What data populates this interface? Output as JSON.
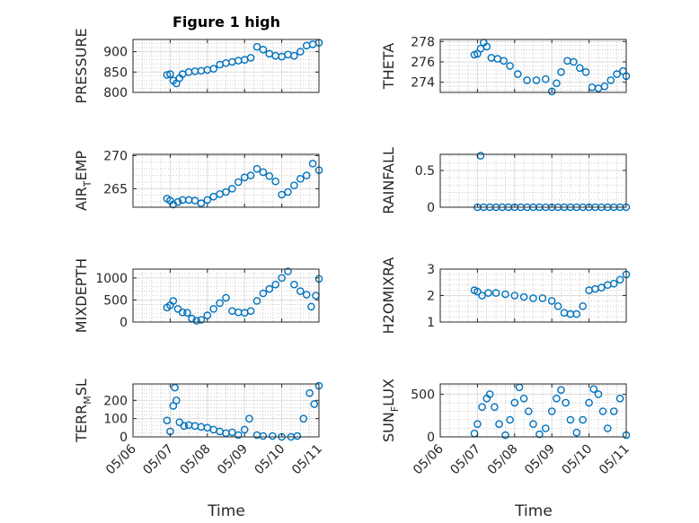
{
  "figure": {
    "title": "Figure 1 high",
    "marker_color": "#0072bd",
    "x_axis_label": "Time",
    "date_ticks": [
      "05/06",
      "05/07",
      "05/08",
      "05/09",
      "05/10",
      "05/11"
    ]
  },
  "chart_data": [
    {
      "type": "scatter",
      "ylabel": "PRESSURE",
      "xlim": [
        "2020-05-06",
        "2020-05-11"
      ],
      "ylim": [
        800,
        930
      ],
      "yticks": [
        800,
        850,
        900
      ],
      "grid": true,
      "x": [
        "2020-05-06T22:00",
        "2020-05-07T00:00",
        "2020-05-07T02:00",
        "2020-05-07T04:00",
        "2020-05-07T06:00",
        "2020-05-07T08:00",
        "2020-05-07T12:00",
        "2020-05-07T16:00",
        "2020-05-07T20:00",
        "2020-05-08T00:00",
        "2020-05-08T04:00",
        "2020-05-08T08:00",
        "2020-05-08T12:00",
        "2020-05-08T16:00",
        "2020-05-08T20:00",
        "2020-05-09T00:00",
        "2020-05-09T04:00",
        "2020-05-09T08:00",
        "2020-05-09T12:00",
        "2020-05-09T16:00",
        "2020-05-09T20:00",
        "2020-05-10T00:00",
        "2020-05-10T04:00",
        "2020-05-10T08:00",
        "2020-05-10T12:00",
        "2020-05-10T16:00",
        "2020-05-10T20:00",
        "2020-05-11T00:00"
      ],
      "y": [
        843,
        845,
        829,
        822,
        835,
        845,
        850,
        852,
        853,
        855,
        858,
        868,
        872,
        875,
        878,
        880,
        885,
        912,
        905,
        895,
        890,
        888,
        893,
        890,
        900,
        915,
        918,
        922
      ]
    },
    {
      "type": "scatter",
      "ylabel": "THETA",
      "xlim": [
        "2020-05-06",
        "2020-05-11"
      ],
      "ylim": [
        273,
        278.2
      ],
      "yticks": [
        274,
        276,
        278
      ],
      "grid": true,
      "x": [
        "2020-05-06T22:00",
        "2020-05-07T00:00",
        "2020-05-07T02:00",
        "2020-05-07T04:00",
        "2020-05-07T06:00",
        "2020-05-07T09:00",
        "2020-05-07T13:00",
        "2020-05-07T17:00",
        "2020-05-07T21:00",
        "2020-05-08T02:00",
        "2020-05-08T08:00",
        "2020-05-08T14:00",
        "2020-05-08T20:00",
        "2020-05-09T00:00",
        "2020-05-09T03:00",
        "2020-05-09T06:00",
        "2020-05-09T10:00",
        "2020-05-09T14:00",
        "2020-05-09T18:00",
        "2020-05-09T22:00",
        "2020-05-10T02:00",
        "2020-05-10T06:00",
        "2020-05-10T10:00",
        "2020-05-10T14:00",
        "2020-05-10T18:00",
        "2020-05-10T22:00",
        "2020-05-11T00:00"
      ],
      "y": [
        276.7,
        276.8,
        277.3,
        277.9,
        277.5,
        276.4,
        276.3,
        276.1,
        275.6,
        274.8,
        274.2,
        274.2,
        274.3,
        273.1,
        273.9,
        275.0,
        276.1,
        276.0,
        275.4,
        275.0,
        273.5,
        273.4,
        273.6,
        274.2,
        274.8,
        275.1,
        274.6
      ]
    },
    {
      "type": "scatter",
      "ylabel": "AIR_TEMP",
      "xlim": [
        "2020-05-06",
        "2020-05-11"
      ],
      "ylim": [
        262.2,
        270.2
      ],
      "yticks": [
        265,
        270
      ],
      "grid": true,
      "x": [
        "2020-05-06T22:00",
        "2020-05-07T00:00",
        "2020-05-07T02:00",
        "2020-05-07T05:00",
        "2020-05-07T08:00",
        "2020-05-07T12:00",
        "2020-05-07T16:00",
        "2020-05-07T20:00",
        "2020-05-08T00:00",
        "2020-05-08T04:00",
        "2020-05-08T08:00",
        "2020-05-08T12:00",
        "2020-05-08T16:00",
        "2020-05-08T20:00",
        "2020-05-09T00:00",
        "2020-05-09T04:00",
        "2020-05-09T08:00",
        "2020-05-09T12:00",
        "2020-05-09T16:00",
        "2020-05-09T20:00",
        "2020-05-10T00:00",
        "2020-05-10T04:00",
        "2020-05-10T08:00",
        "2020-05-10T12:00",
        "2020-05-10T16:00",
        "2020-05-10T20:00",
        "2020-05-11T00:00"
      ],
      "y": [
        263.5,
        263.2,
        262.6,
        263.0,
        263.3,
        263.3,
        263.2,
        262.8,
        263.3,
        263.8,
        264.2,
        264.5,
        265.0,
        266.0,
        266.7,
        267.0,
        268.0,
        267.5,
        266.9,
        266.1,
        264.1,
        264.5,
        265.5,
        266.5,
        267.0,
        268.8,
        267.8
      ]
    },
    {
      "type": "scatter",
      "ylabel": "RAINFALL",
      "xlim": [
        "2020-05-06",
        "2020-05-11"
      ],
      "ylim": [
        0,
        0.72
      ],
      "yticks": [
        0,
        0.5
      ],
      "grid": true,
      "x": [
        "2020-05-07T00:00",
        "2020-05-07T04:00",
        "2020-05-07T08:00",
        "2020-05-07T12:00",
        "2020-05-07T16:00",
        "2020-05-07T20:00",
        "2020-05-08T00:00",
        "2020-05-08T04:00",
        "2020-05-08T08:00",
        "2020-05-08T12:00",
        "2020-05-08T16:00",
        "2020-05-08T20:00",
        "2020-05-09T00:00",
        "2020-05-09T04:00",
        "2020-05-09T08:00",
        "2020-05-09T12:00",
        "2020-05-09T16:00",
        "2020-05-09T20:00",
        "2020-05-10T00:00",
        "2020-05-10T04:00",
        "2020-05-10T08:00",
        "2020-05-10T12:00",
        "2020-05-10T16:00",
        "2020-05-10T20:00",
        "2020-05-11T00:00",
        "2020-05-07T02:00"
      ],
      "y": [
        0,
        0,
        0,
        0,
        0,
        0,
        0,
        0,
        0,
        0,
        0,
        0,
        0,
        0,
        0,
        0,
        0,
        0,
        0,
        0,
        0,
        0,
        0,
        0,
        0,
        0.7
      ]
    },
    {
      "type": "scatter",
      "ylabel": "MIXDEPTH",
      "xlim": [
        "2020-05-06",
        "2020-05-11"
      ],
      "ylim": [
        0,
        1200
      ],
      "yticks": [
        0,
        500,
        1000
      ],
      "grid": true,
      "x": [
        "2020-05-06T22:00",
        "2020-05-07T00:00",
        "2020-05-07T02:00",
        "2020-05-07T05:00",
        "2020-05-07T08:00",
        "2020-05-07T11:00",
        "2020-05-07T14:00",
        "2020-05-07T17:00",
        "2020-05-07T20:00",
        "2020-05-08T00:00",
        "2020-05-08T04:00",
        "2020-05-08T08:00",
        "2020-05-08T12:00",
        "2020-05-08T16:00",
        "2020-05-08T20:00",
        "2020-05-09T00:00",
        "2020-05-09T04:00",
        "2020-05-09T08:00",
        "2020-05-09T12:00",
        "2020-05-09T16:00",
        "2020-05-09T20:00",
        "2020-05-10T00:00",
        "2020-05-10T04:00",
        "2020-05-10T08:00",
        "2020-05-10T12:00",
        "2020-05-10T16:00",
        "2020-05-10T19:00",
        "2020-05-10T22:00",
        "2020-05-11T00:00"
      ],
      "y": [
        330,
        380,
        480,
        300,
        220,
        210,
        80,
        30,
        50,
        150,
        300,
        430,
        550,
        250,
        220,
        210,
        250,
        480,
        650,
        750,
        850,
        1000,
        1150,
        850,
        700,
        620,
        350,
        600,
        980
      ]
    },
    {
      "type": "scatter",
      "ylabel": "H2OMIXRA",
      "xlim": [
        "2020-05-06",
        "2020-05-11"
      ],
      "ylim": [
        1,
        3
      ],
      "yticks": [
        1,
        2,
        3
      ],
      "grid": true,
      "x": [
        "2020-05-06T22:00",
        "2020-05-07T00:00",
        "2020-05-07T03:00",
        "2020-05-07T07:00",
        "2020-05-07T12:00",
        "2020-05-07T18:00",
        "2020-05-08T00:00",
        "2020-05-08T06:00",
        "2020-05-08T12:00",
        "2020-05-08T18:00",
        "2020-05-09T00:00",
        "2020-05-09T04:00",
        "2020-05-09T08:00",
        "2020-05-09T12:00",
        "2020-05-09T16:00",
        "2020-05-09T20:00",
        "2020-05-10T00:00",
        "2020-05-10T04:00",
        "2020-05-10T08:00",
        "2020-05-10T12:00",
        "2020-05-10T16:00",
        "2020-05-10T20:00",
        "2020-05-11T00:00"
      ],
      "y": [
        2.2,
        2.15,
        2.0,
        2.1,
        2.1,
        2.05,
        2.0,
        1.95,
        1.9,
        1.9,
        1.8,
        1.6,
        1.35,
        1.3,
        1.3,
        1.6,
        2.2,
        2.25,
        2.3,
        2.4,
        2.45,
        2.6,
        2.8
      ]
    },
    {
      "type": "scatter",
      "ylabel": "TERR_MSL",
      "xlim": [
        "2020-05-06",
        "2020-05-11"
      ],
      "ylim": [
        0,
        290
      ],
      "yticks": [
        0,
        100,
        200
      ],
      "grid": true,
      "x": [
        "2020-05-06T22:00",
        "2020-05-07T00:00",
        "2020-05-07T02:00",
        "2020-05-07T03:00",
        "2020-05-07T04:00",
        "2020-05-07T06:00",
        "2020-05-07T09:00",
        "2020-05-07T12:00",
        "2020-05-07T16:00",
        "2020-05-07T20:00",
        "2020-05-08T00:00",
        "2020-05-08T04:00",
        "2020-05-08T08:00",
        "2020-05-08T12:00",
        "2020-05-08T16:00",
        "2020-05-08T20:00",
        "2020-05-09T00:00",
        "2020-05-09T03:00",
        "2020-05-09T08:00",
        "2020-05-09T12:00",
        "2020-05-09T18:00",
        "2020-05-10T00:00",
        "2020-05-10T06:00",
        "2020-05-10T10:00",
        "2020-05-10T14:00",
        "2020-05-10T18:00",
        "2020-05-10T21:00",
        "2020-05-11T00:00"
      ],
      "y": [
        90,
        30,
        170,
        270,
        200,
        80,
        60,
        65,
        60,
        55,
        50,
        40,
        30,
        20,
        25,
        10,
        40,
        100,
        10,
        5,
        5,
        0,
        0,
        5,
        100,
        240,
        180,
        280
      ]
    },
    {
      "type": "scatter",
      "ylabel": "SUN_FLUX",
      "xlim": [
        "2020-05-06",
        "2020-05-11"
      ],
      "ylim": [
        0,
        620
      ],
      "yticks": [
        0,
        500
      ],
      "grid": true,
      "x": [
        "2020-05-06T22:00",
        "2020-05-07T00:00",
        "2020-05-07T03:00",
        "2020-05-07T06:00",
        "2020-05-07T08:00",
        "2020-05-07T11:00",
        "2020-05-07T14:00",
        "2020-05-07T18:00",
        "2020-05-07T21:00",
        "2020-05-08T00:00",
        "2020-05-08T03:00",
        "2020-05-08T06:00",
        "2020-05-08T09:00",
        "2020-05-08T12:00",
        "2020-05-08T16:00",
        "2020-05-08T20:00",
        "2020-05-09T00:00",
        "2020-05-09T03:00",
        "2020-05-09T06:00",
        "2020-05-09T09:00",
        "2020-05-09T12:00",
        "2020-05-09T16:00",
        "2020-05-09T20:00",
        "2020-05-10T00:00",
        "2020-05-10T03:00",
        "2020-05-10T06:00",
        "2020-05-10T09:00",
        "2020-05-10T12:00",
        "2020-05-10T16:00",
        "2020-05-10T20:00",
        "2020-05-11T00:00"
      ],
      "y": [
        40,
        150,
        350,
        450,
        500,
        350,
        150,
        20,
        200,
        400,
        580,
        450,
        300,
        150,
        30,
        100,
        300,
        450,
        550,
        400,
        200,
        50,
        200,
        400,
        560,
        500,
        300,
        100,
        300,
        450,
        20
      ]
    }
  ]
}
